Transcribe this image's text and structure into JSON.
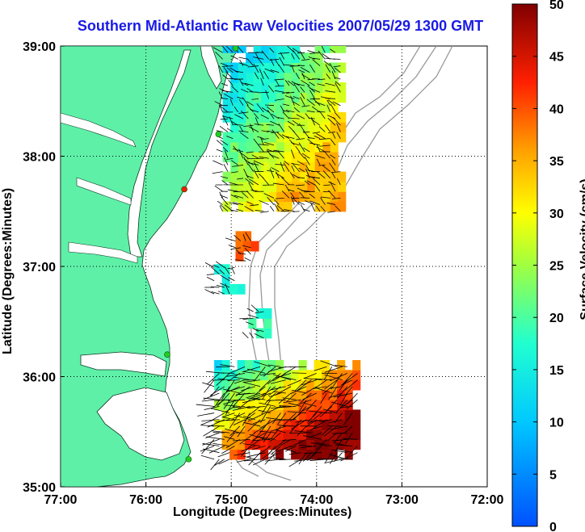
{
  "title": "Southern Mid-Atlantic Raw Velocities 2007/05/29 1300 GMT",
  "x_axis": {
    "label": "Longitude (Degrees:Minutes)",
    "ticks": [
      "77:00",
      "76:00",
      "75:00",
      "74:00",
      "73:00",
      "72:00"
    ]
  },
  "y_axis": {
    "label": "Latitude (Degrees:Minutes)",
    "ticks": [
      "39:00",
      "38:00",
      "37:00",
      "36:00",
      "35:00"
    ]
  },
  "colorbar": {
    "label": "Surface Velocity (cm/s)",
    "ticks": [
      "50",
      "45",
      "40",
      "35",
      "30",
      "25",
      "20",
      "15",
      "10",
      "5",
      "0"
    ],
    "min": 0,
    "max": 50,
    "colormap": "jet"
  },
  "map": {
    "land_color": "#5ff0a8",
    "water_color": "#ffffff",
    "grid": "dotted",
    "bathymetry_color": "#999999"
  },
  "chart_data": {
    "type": "map-vector-field",
    "xlim": [
      -77,
      -72
    ],
    "ylim": [
      35,
      39
    ],
    "color_range": [
      0,
      50
    ],
    "regions": [
      {
        "name": "north-field",
        "lon": [
          -75.1,
          -73.7
        ],
        "lat": [
          37.5,
          38.95
        ],
        "speed_range": [
          8,
          35
        ]
      },
      {
        "name": "mid-patch",
        "lon": [
          -74.95,
          -74.75
        ],
        "lat": [
          37.05,
          37.25
        ],
        "speed": 40
      },
      {
        "name": "small-patch-west",
        "lon": [
          -75.2,
          -74.9
        ],
        "lat": [
          36.75,
          37.0
        ],
        "speed": 16
      },
      {
        "name": "small-patch-center",
        "lon": [
          -74.8,
          -74.6
        ],
        "lat": [
          36.35,
          36.6
        ],
        "speed": 18
      },
      {
        "name": "south-field",
        "lon": [
          -75.2,
          -73.5
        ],
        "lat": [
          35.25,
          36.15
        ],
        "speed_range": [
          10,
          50
        ]
      }
    ],
    "sites": [
      {
        "lon": -74.95,
        "lat": 38.98,
        "color": "#22cc22"
      },
      {
        "lon": -75.15,
        "lat": 38.2,
        "color": "#22cc22"
      },
      {
        "lon": -75.55,
        "lat": 37.7,
        "color": "#ee2200"
      },
      {
        "lon": -75.75,
        "lat": 36.2,
        "color": "#22cc22"
      },
      {
        "lon": -75.5,
        "lat": 35.25,
        "color": "#22cc22"
      }
    ]
  }
}
